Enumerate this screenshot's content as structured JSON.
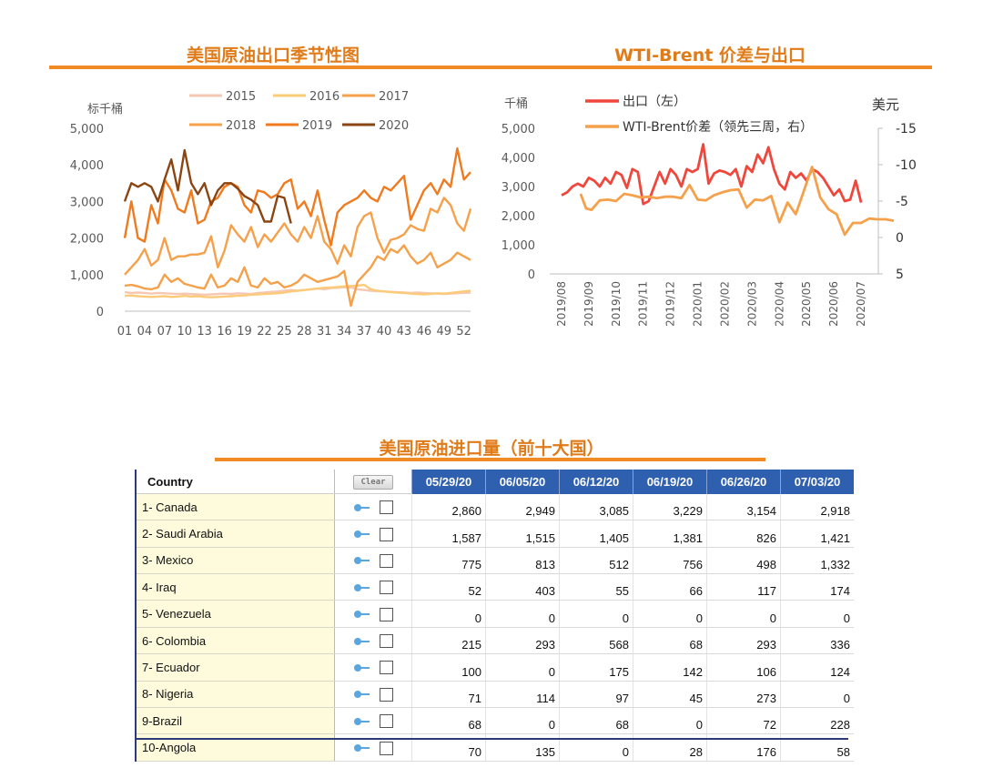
{
  "titles": {
    "left": "美国原油出口季节性图",
    "right": "WTI-Brent 价差与出口",
    "table": "美国原油进口量（前十大国）"
  },
  "colors": {
    "title": "#E07B1A",
    "rule": "#F08A24",
    "header_blue": "#2F5FAF"
  },
  "chart_data": [
    {
      "type": "line",
      "title": "美国原油出口季节性图",
      "ylabel": "标千桶",
      "ylim": [
        0,
        5000
      ],
      "yticks": [
        "0",
        "1,000",
        "2,000",
        "3,000",
        "4,000",
        "5,000"
      ],
      "x_range": [
        1,
        53
      ],
      "xticks": [
        "01",
        "04",
        "07",
        "10",
        "13",
        "16",
        "19",
        "22",
        "25",
        "28",
        "31",
        "34",
        "37",
        "40",
        "43",
        "46",
        "49",
        "52"
      ],
      "legend": [
        "2015",
        "2016",
        "2017",
        "2018",
        "2019",
        "2020"
      ],
      "series": [
        {
          "name": "2015",
          "color": "#F6C8B4",
          "values": [
            520,
            500,
            510,
            500,
            480,
            500,
            490,
            480,
            470,
            480,
            470,
            460,
            450,
            460,
            470,
            480,
            470,
            490,
            480,
            470,
            500,
            510,
            530,
            540,
            560,
            580,
            560,
            580,
            600,
            620,
            600,
            630,
            640,
            660,
            650,
            600,
            580,
            560,
            550,
            540,
            530,
            520,
            510,
            500,
            510,
            500,
            490,
            480,
            470,
            480,
            490,
            500,
            510
          ]
        },
        {
          "name": "2016",
          "color": "#FBCB7A",
          "values": [
            420,
            430,
            410,
            400,
            390,
            400,
            410,
            390,
            400,
            420,
            400,
            410,
            390,
            380,
            390,
            400,
            410,
            420,
            430,
            450,
            460,
            470,
            480,
            490,
            510,
            540,
            560,
            580,
            600,
            620,
            640,
            650,
            660,
            680,
            690,
            700,
            720,
            600,
            560,
            540,
            520,
            510,
            500,
            480,
            470,
            460,
            470,
            490,
            480,
            500,
            520,
            540,
            560
          ]
        },
        {
          "name": "2017",
          "color": "#F5A04A",
          "values": [
            700,
            720,
            680,
            620,
            600,
            650,
            1000,
            800,
            900,
            750,
            700,
            650,
            620,
            1000,
            650,
            700,
            900,
            800,
            1200,
            700,
            650,
            900,
            750,
            800,
            650,
            700,
            800,
            1000,
            900,
            800,
            850,
            900,
            950,
            1100,
            150,
            800,
            1000,
            1200,
            1500,
            1400,
            1700,
            1600,
            1800,
            1500,
            1300,
            1400,
            1600,
            1200,
            1300,
            1400,
            1600,
            1500,
            1400
          ]
        },
        {
          "name": "2018",
          "color": "#F5A04A",
          "values": [
            1000,
            1200,
            1400,
            1700,
            1250,
            1400,
            2000,
            1400,
            1500,
            1500,
            1550,
            1550,
            1600,
            2050,
            1200,
            1650,
            2350,
            2100,
            1900,
            2300,
            1750,
            2100,
            1900,
            2150,
            2400,
            2100,
            1900,
            2300,
            2000,
            2600,
            1900,
            1700,
            1300,
            1800,
            1500,
            2300,
            2600,
            2700,
            2000,
            1600,
            1950,
            2000,
            2100,
            2350,
            2250,
            2200,
            2800,
            2700,
            3100,
            2900,
            2400,
            2200,
            2800
          ]
        },
        {
          "name": "2019",
          "color": "#F07A1E",
          "values": [
            2000,
            3000,
            2000,
            1900,
            2900,
            2400,
            3600,
            3300,
            2800,
            2700,
            3300,
            2400,
            2500,
            3000,
            3100,
            3400,
            3500,
            3400,
            2900,
            2700,
            3300,
            3250,
            3100,
            3200,
            3500,
            3600,
            2800,
            3000,
            2600,
            3300,
            2500,
            1800,
            2700,
            2900,
            3000,
            3100,
            3300,
            3100,
            3000,
            3400,
            3300,
            3500,
            3700,
            2500,
            2900,
            3300,
            3500,
            3200,
            3600,
            3400,
            4450,
            3600,
            3800
          ]
        },
        {
          "name": "2020",
          "color": "#8B4513",
          "values": [
            3000,
            3500,
            3400,
            3500,
            3400,
            3000,
            3600,
            4150,
            3300,
            4400,
            3500,
            3200,
            3500,
            2900,
            3300,
            3500,
            3500,
            3350,
            3150,
            3050,
            2900,
            2450,
            2450,
            3150,
            3100,
            2400
          ]
        }
      ]
    },
    {
      "type": "line",
      "title": "WTI-Brent 价差与出口",
      "ylabel_left": "千桶",
      "ylabel_right": "美元",
      "ylim_left": [
        0,
        5000
      ],
      "ylim_right_inverted": [
        5,
        -15
      ],
      "yticks_left": [
        "0",
        "1,000",
        "2,000",
        "3,000",
        "4,000",
        "5,000"
      ],
      "yticks_right": [
        "5",
        "0",
        "-5",
        "-10",
        "-15"
      ],
      "xticks": [
        "2019/08",
        "2019/09",
        "2019/10",
        "2019/11",
        "2019/12",
        "2020/01",
        "2020/02",
        "2020/03",
        "2020/04",
        "2020/05",
        "2020/06",
        "2020/07"
      ],
      "legend": [
        "出口（左）",
        "WTI-Brent价差（领先三周，右）"
      ],
      "series": [
        {
          "name": "出口（左）",
          "color": "#F0473C",
          "axis": "left",
          "x": [
            0,
            0.2,
            0.4,
            0.6,
            0.8,
            1.0,
            1.2,
            1.4,
            1.6,
            1.8,
            2.0,
            2.2,
            2.4,
            2.6,
            2.8,
            3.0,
            3.2,
            3.4,
            3.6,
            3.8,
            4.0,
            4.2,
            4.4,
            4.6,
            4.8,
            5.0,
            5.2,
            5.4,
            5.6,
            5.8,
            6.0,
            6.2,
            6.4,
            6.6,
            6.8,
            7.0,
            7.2,
            7.4,
            7.6,
            7.8,
            8.0,
            8.2,
            8.4,
            8.6,
            8.8,
            9.0,
            9.2,
            9.4,
            9.6,
            9.8,
            10.0,
            10.2,
            10.4,
            10.6,
            10.8,
            11.0
          ],
          "values": [
            2700,
            2800,
            3000,
            3100,
            3000,
            3300,
            3200,
            3000,
            3300,
            3100,
            3500,
            3400,
            2950,
            3600,
            3500,
            2400,
            2500,
            3000,
            3500,
            3100,
            3600,
            3400,
            3000,
            3600,
            3500,
            3600,
            4450,
            3100,
            3450,
            3550,
            3500,
            3400,
            3600,
            3000,
            3700,
            3500,
            4100,
            3800,
            4350,
            3600,
            3100,
            2900,
            3500,
            3300,
            3450,
            3200,
            3600,
            3500,
            3300,
            3000,
            2700,
            2900,
            2500,
            2550,
            3200,
            2450
          ]
        },
        {
          "name": "WTI-Brent价差（领先三周，右）",
          "color": "#F5A04A",
          "axis": "right",
          "x": [
            0.7,
            0.9,
            1.1,
            1.4,
            1.7,
            2.0,
            2.3,
            2.6,
            2.9,
            3.2,
            3.5,
            3.8,
            4.1,
            4.4,
            4.7,
            5.0,
            5.3,
            5.6,
            5.9,
            6.2,
            6.5,
            6.8,
            7.1,
            7.4,
            7.7,
            8.0,
            8.3,
            8.6,
            8.9,
            9.2,
            9.5,
            9.8,
            10.1,
            10.4,
            10.7,
            11.0,
            11.3,
            11.6,
            11.9,
            12.2
          ],
          "values": [
            -6,
            -4,
            -3.8,
            -5.1,
            -5.2,
            -5.0,
            -6.0,
            -5.8,
            -5.5,
            -5.6,
            -5.4,
            -5.6,
            -5.6,
            -5.4,
            -7.2,
            -5.2,
            -5.1,
            -5.8,
            -6.2,
            -6.5,
            -6.6,
            -4.1,
            -5.2,
            -5.1,
            -5.7,
            -2.1,
            -4.8,
            -3.2,
            -6.4,
            -9.7,
            -5.5,
            -3.9,
            -3.2,
            -0.4,
            -2.0,
            -2.0,
            -2.6,
            -2.5,
            -2.5,
            -2.3
          ]
        }
      ]
    },
    {
      "type": "table",
      "title": "美国原油进口量（前十大国）",
      "header": {
        "country": "Country",
        "clear": "Clear"
      },
      "columns": [
        "05/29/20",
        "06/05/20",
        "06/12/20",
        "06/19/20",
        "06/26/20",
        "07/03/20"
      ],
      "rows": [
        {
          "country": "1- Canada",
          "values": [
            "2,860",
            "2,949",
            "3,085",
            "3,229",
            "3,154",
            "2,918"
          ]
        },
        {
          "country": "2- Saudi Arabia",
          "values": [
            "1,587",
            "1,515",
            "1,405",
            "1,381",
            "826",
            "1,421"
          ]
        },
        {
          "country": "3- Mexico",
          "values": [
            "775",
            "813",
            "512",
            "756",
            "498",
            "1,332"
          ]
        },
        {
          "country": "4- Iraq",
          "values": [
            "52",
            "403",
            "55",
            "66",
            "117",
            "174"
          ]
        },
        {
          "country": "5- Venezuela",
          "values": [
            "0",
            "0",
            "0",
            "0",
            "0",
            "0"
          ]
        },
        {
          "country": "6- Colombia",
          "values": [
            "215",
            "293",
            "568",
            "68",
            "293",
            "336"
          ]
        },
        {
          "country": "7- Ecuador",
          "values": [
            "100",
            "0",
            "175",
            "142",
            "106",
            "124"
          ]
        },
        {
          "country": "8- Nigeria",
          "values": [
            "71",
            "114",
            "97",
            "45",
            "273",
            "0"
          ]
        },
        {
          "country": "9-Brazil",
          "values": [
            "68",
            "0",
            "68",
            "0",
            "72",
            "228"
          ]
        },
        {
          "country": "10-Angola",
          "values": [
            "70",
            "135",
            "0",
            "28",
            "176",
            "58"
          ]
        }
      ]
    }
  ]
}
